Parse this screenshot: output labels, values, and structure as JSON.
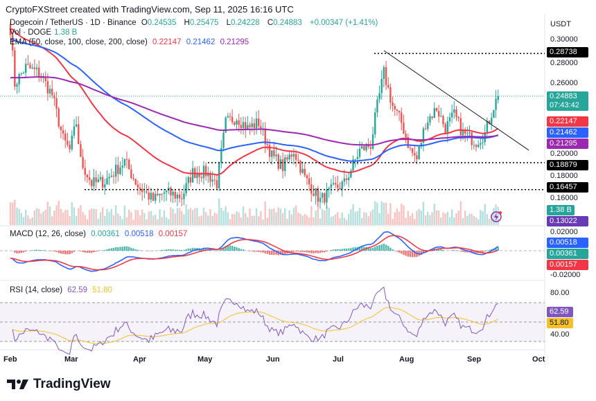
{
  "header": "CryptoFXStreet created with TradingView.com, Sep 11, 2025 16:16 UTC",
  "legend": {
    "symbol": "Dogecoin / TetherUS · 1D · Binance",
    "o_label": "O",
    "o": "0.24535",
    "h_label": "H",
    "h": "0.25475",
    "l_label": "L",
    "l": "0.24228",
    "c_label": "C",
    "c": "0.24883",
    "change": "+0.00347 (+1.41%)",
    "vol_label": "Vol · DOGE",
    "vol": "1.38 B",
    "ema_label": "EMA (50, close, 100, close, 200, close)",
    "ema50": "0.22147",
    "ema100": "0.21462",
    "ema200": "0.21295",
    "macd_label": "MACD (12, 26, close)",
    "macd_hist": "0.00361",
    "macd": "0.00518",
    "macd_signal": "0.00157",
    "rsi_label": "RSI (14, close)",
    "rsi": "62.59",
    "rsi_ma": "51.80"
  },
  "price_axis": {
    "currency": "USDT",
    "ticks": [
      "0.30000",
      "0.28000",
      "0.26000",
      "0.20000",
      "0.18000",
      "0.16000"
    ],
    "tags": {
      "level_high": "0.28738",
      "last": "0.24883",
      "countdown": "07:43:42",
      "ema50": "0.22147",
      "ema100": "0.21462",
      "ema200": "0.21295",
      "level_mid": "0.18879",
      "level_low": "0.16457",
      "vol": "1.38 B",
      "vol2": "0.13022"
    }
  },
  "macd_axis": {
    "ticks": [
      "0.02000",
      "-0.02000"
    ],
    "tags": {
      "macd": "0.00518",
      "hist": "0.00361",
      "signal": "0.00157"
    }
  },
  "rsi_axis": {
    "ticks": [
      "80.00",
      "40.00"
    ],
    "tags": {
      "rsi": "62.59",
      "rsi_ma": "51.80"
    }
  },
  "time_axis": [
    "Feb",
    "Mar",
    "Apr",
    "May",
    "Jun",
    "Jul",
    "Aug",
    "Sep",
    "Oct"
  ],
  "brand": "TradingView",
  "colors": {
    "up": "#26a69a",
    "down": "#ef5350",
    "ema50": "#f23645",
    "ema100": "#2962ff",
    "ema200": "#9c27b0",
    "rsi": "#7e57c2",
    "rsi_ma": "#f5c02a"
  },
  "chart_data": {
    "type": "candlestick",
    "symbol": "DOGEUSDT",
    "interval": "1D",
    "ylim": [
      0.14,
      0.31
    ],
    "close_keypoints": [
      [
        "2025-02-01",
        0.31
      ],
      [
        "2025-02-03",
        0.26
      ],
      [
        "2025-02-08",
        0.275
      ],
      [
        "2025-02-14",
        0.27
      ],
      [
        "2025-02-20",
        0.25
      ],
      [
        "2025-02-25",
        0.21
      ],
      [
        "2025-02-28",
        0.2
      ],
      [
        "2025-03-03",
        0.225
      ],
      [
        "2025-03-05",
        0.19
      ],
      [
        "2025-03-10",
        0.17
      ],
      [
        "2025-03-16",
        0.172
      ],
      [
        "2025-03-25",
        0.19
      ],
      [
        "2025-03-31",
        0.168
      ],
      [
        "2025-04-07",
        0.155
      ],
      [
        "2025-04-12",
        0.162
      ],
      [
        "2025-04-20",
        0.158
      ],
      [
        "2025-04-25",
        0.18
      ],
      [
        "2025-05-01",
        0.18
      ],
      [
        "2025-05-06",
        0.17
      ],
      [
        "2025-05-10",
        0.225
      ],
      [
        "2025-05-15",
        0.23
      ],
      [
        "2025-05-20",
        0.22
      ],
      [
        "2025-05-25",
        0.225
      ],
      [
        "2025-05-31",
        0.195
      ],
      [
        "2025-06-05",
        0.185
      ],
      [
        "2025-06-10",
        0.2
      ],
      [
        "2025-06-15",
        0.175
      ],
      [
        "2025-06-22",
        0.155
      ],
      [
        "2025-06-28",
        0.165
      ],
      [
        "2025-07-03",
        0.17
      ],
      [
        "2025-07-10",
        0.2
      ],
      [
        "2025-07-15",
        0.205
      ],
      [
        "2025-07-18",
        0.24
      ],
      [
        "2025-07-21",
        0.27
      ],
      [
        "2025-07-25",
        0.24
      ],
      [
        "2025-07-29",
        0.225
      ],
      [
        "2025-08-02",
        0.2
      ],
      [
        "2025-08-05",
        0.192
      ],
      [
        "2025-08-09",
        0.225
      ],
      [
        "2025-08-14",
        0.238
      ],
      [
        "2025-08-18",
        0.22
      ],
      [
        "2025-08-22",
        0.232
      ],
      [
        "2025-08-26",
        0.215
      ],
      [
        "2025-09-01",
        0.208
      ],
      [
        "2025-09-05",
        0.215
      ],
      [
        "2025-09-09",
        0.24
      ],
      [
        "2025-09-11",
        0.24883
      ]
    ],
    "last_ohlc": {
      "open": 0.24535,
      "high": 0.25475,
      "low": 0.24228,
      "close": 0.24883
    },
    "indicators": {
      "ema": [
        50,
        100,
        200
      ],
      "macd": [
        12,
        26,
        9
      ],
      "rsi": 14,
      "rsi_bands": [
        70,
        30
      ]
    },
    "horizontal_levels": [
      0.28738,
      0.18879,
      0.16457
    ],
    "trendline": [
      [
        "2025-07-21",
        0.29
      ],
      [
        "2025-09-25",
        0.2
      ]
    ]
  }
}
